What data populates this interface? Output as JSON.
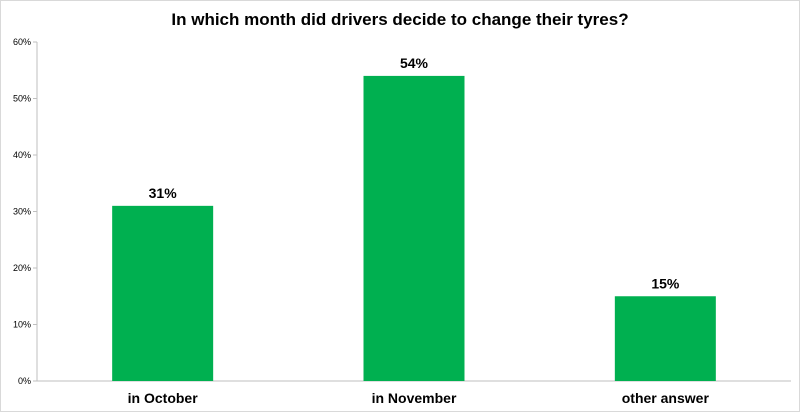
{
  "chart_data": {
    "type": "bar",
    "title": "In which month did drivers decide to change their tyres?",
    "categories": [
      "in October",
      "in November",
      "other answer"
    ],
    "values": [
      31,
      54,
      15
    ],
    "value_labels": [
      "31%",
      "54%",
      "15%"
    ],
    "y_ticks": [
      "0%",
      "10%",
      "20%",
      "30%",
      "40%",
      "50%",
      "60%"
    ],
    "ylim": [
      0,
      60
    ],
    "grid": false,
    "legend": "none",
    "bar_color": "#00b050"
  }
}
